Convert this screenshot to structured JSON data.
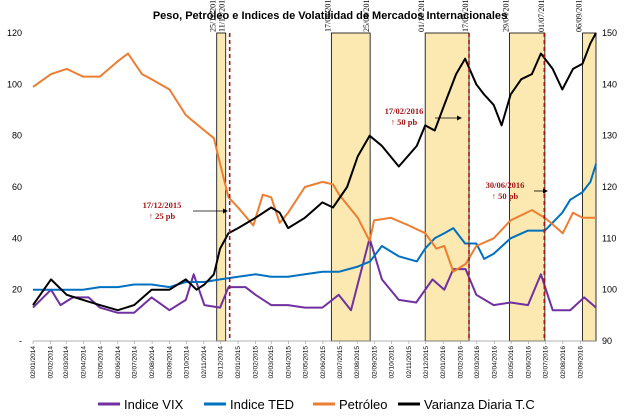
{
  "chart_data": {
    "type": "line",
    "title": "Peso, Petróleo e Indices de Volatilidad de Mercados Internacionales",
    "y_left": {
      "lim": [
        0,
        120
      ],
      "ticks": [
        0,
        20,
        40,
        60,
        80,
        100,
        120
      ],
      "tick_labels": [
        "-",
        "20",
        "40",
        "60",
        "80",
        "100",
        "120"
      ]
    },
    "y_right": {
      "lim": [
        90,
        150
      ],
      "ticks": [
        90,
        100,
        110,
        120,
        130,
        140,
        150
      ],
      "tick_labels": [
        "90",
        "100",
        "110",
        "120",
        "130",
        "140",
        "150"
      ]
    },
    "x_range": [
      "2014-01-02",
      "2016-09-30"
    ],
    "x_tick_labels": [
      "02/01/2014",
      "02/02/2014",
      "02/03/2014",
      "02/04/2014",
      "02/05/2014",
      "02/06/2014",
      "02/07/2014",
      "02/08/2014",
      "02/09/2014",
      "02/10/2014",
      "02/11/2014",
      "02/12/2014",
      "02/01/2015",
      "02/02/2015",
      "02/03/2015",
      "02/04/2015",
      "02/05/2015",
      "02/06/2015",
      "02/07/2015",
      "02/08/2015",
      "02/09/2015",
      "02/10/2015",
      "02/11/2015",
      "02/12/2015",
      "02/01/2016",
      "02/02/2016",
      "02/03/2016",
      "02/04/2016",
      "02/05/2016",
      "02/06/2016",
      "02/07/2016",
      "02/08/2016",
      "02/09/2016"
    ],
    "shaded_periods": [
      {
        "start": "2014-11-25",
        "end": "2014-12-11",
        "start_label": "25/11/2014",
        "end_label": "11/12/2014"
      },
      {
        "start": "2015-06-17",
        "end": "2015-08-25",
        "start_label": "17/06/2015",
        "end_label": "25/08/2015"
      },
      {
        "start": "2015-12-01",
        "end": "2016-02-17",
        "start_label": "01/12/2015",
        "end_label": "17/02/2016"
      },
      {
        "start": "2016-04-29",
        "end": "2016-07-01",
        "start_label": "29/04/2016",
        "end_label": "01/07/2016"
      },
      {
        "start": "2016-09-06",
        "end": "2016-09-30",
        "start_label": "06/09/2016",
        "end_label": ""
      }
    ],
    "event_lines": [
      "2014-12-18",
      "2016-02-17",
      "2016-06-30"
    ],
    "annotations": [
      {
        "date_text": "17/12/2015",
        "change_text": "↑ 25 pb"
      },
      {
        "date_text": "17/02/2016",
        "change_text": "↑ 50 pb"
      },
      {
        "date_text": "30/06/2016",
        "change_text": "↑ 50 pb"
      }
    ],
    "series": [
      {
        "name": "Indice VIX",
        "color": "#7030a0",
        "axis": "left",
        "points": [
          [
            "2014-01-02",
            13
          ],
          [
            "2014-02-03",
            20
          ],
          [
            "2014-02-20",
            14
          ],
          [
            "2014-03-14",
            17
          ],
          [
            "2014-04-11",
            17
          ],
          [
            "2014-05-01",
            13
          ],
          [
            "2014-06-02",
            11
          ],
          [
            "2014-07-01",
            11
          ],
          [
            "2014-08-01",
            17
          ],
          [
            "2014-09-02",
            12
          ],
          [
            "2014-10-01",
            16
          ],
          [
            "2014-10-15",
            26
          ],
          [
            "2014-11-03",
            14
          ],
          [
            "2014-12-01",
            13
          ],
          [
            "2014-12-16",
            21
          ],
          [
            "2015-01-15",
            21
          ],
          [
            "2015-02-02",
            18
          ],
          [
            "2015-03-02",
            14
          ],
          [
            "2015-04-01",
            14
          ],
          [
            "2015-05-01",
            13
          ],
          [
            "2015-06-01",
            13
          ],
          [
            "2015-06-30",
            18
          ],
          [
            "2015-07-22",
            12
          ],
          [
            "2015-08-24",
            40
          ],
          [
            "2015-09-15",
            24
          ],
          [
            "2015-10-15",
            16
          ],
          [
            "2015-11-15",
            15
          ],
          [
            "2015-12-14",
            24
          ],
          [
            "2016-01-04",
            20
          ],
          [
            "2016-01-20",
            28
          ],
          [
            "2016-02-11",
            28
          ],
          [
            "2016-03-01",
            18
          ],
          [
            "2016-04-01",
            14
          ],
          [
            "2016-05-01",
            15
          ],
          [
            "2016-06-01",
            14
          ],
          [
            "2016-06-24",
            26
          ],
          [
            "2016-07-15",
            12
          ],
          [
            "2016-08-15",
            12
          ],
          [
            "2016-09-09",
            17
          ],
          [
            "2016-09-30",
            13
          ]
        ]
      },
      {
        "name": "Indice TED",
        "color": "#0070c0",
        "axis": "left",
        "points": [
          [
            "2014-01-02",
            20
          ],
          [
            "2014-02-03",
            20
          ],
          [
            "2014-03-03",
            20
          ],
          [
            "2014-04-01",
            20
          ],
          [
            "2014-05-01",
            21
          ],
          [
            "2014-06-02",
            21
          ],
          [
            "2014-07-01",
            22
          ],
          [
            "2014-08-01",
            22
          ],
          [
            "2014-09-02",
            21
          ],
          [
            "2014-10-01",
            23
          ],
          [
            "2014-11-03",
            23
          ],
          [
            "2014-12-01",
            24
          ],
          [
            "2015-01-02",
            25
          ],
          [
            "2015-02-02",
            26
          ],
          [
            "2015-03-02",
            25
          ],
          [
            "2015-04-01",
            25
          ],
          [
            "2015-05-01",
            26
          ],
          [
            "2015-06-01",
            27
          ],
          [
            "2015-07-01",
            27
          ],
          [
            "2015-08-03",
            29
          ],
          [
            "2015-08-25",
            31
          ],
          [
            "2015-09-15",
            37
          ],
          [
            "2015-10-15",
            33
          ],
          [
            "2015-11-16",
            31
          ],
          [
            "2015-12-01",
            36
          ],
          [
            "2015-12-18",
            40
          ],
          [
            "2016-01-04",
            42
          ],
          [
            "2016-01-20",
            44
          ],
          [
            "2016-02-10",
            38
          ],
          [
            "2016-03-01",
            38
          ],
          [
            "2016-03-15",
            32
          ],
          [
            "2016-04-01",
            34
          ],
          [
            "2016-05-01",
            40
          ],
          [
            "2016-06-01",
            43
          ],
          [
            "2016-07-01",
            43
          ],
          [
            "2016-08-01",
            50
          ],
          [
            "2016-08-15",
            55
          ],
          [
            "2016-09-06",
            58
          ],
          [
            "2016-09-20",
            62
          ],
          [
            "2016-09-30",
            69
          ]
        ]
      },
      {
        "name": "Petróleo",
        "color": "#ed7d31",
        "axis": "left",
        "points": [
          [
            "2014-01-02",
            99
          ],
          [
            "2014-02-03",
            104
          ],
          [
            "2014-03-03",
            106
          ],
          [
            "2014-04-01",
            103
          ],
          [
            "2014-05-01",
            103
          ],
          [
            "2014-06-02",
            109
          ],
          [
            "2014-06-20",
            112
          ],
          [
            "2014-07-15",
            104
          ],
          [
            "2014-08-01",
            102
          ],
          [
            "2014-09-02",
            98
          ],
          [
            "2014-10-01",
            88
          ],
          [
            "2014-11-03",
            82
          ],
          [
            "2014-11-20",
            79
          ],
          [
            "2014-12-01",
            69
          ],
          [
            "2014-12-16",
            56
          ],
          [
            "2015-01-02",
            52
          ],
          [
            "2015-01-29",
            45
          ],
          [
            "2015-02-15",
            57
          ],
          [
            "2015-03-02",
            56
          ],
          [
            "2015-03-17",
            46
          ],
          [
            "2015-04-01",
            50
          ],
          [
            "2015-05-01",
            60
          ],
          [
            "2015-06-01",
            62
          ],
          [
            "2015-06-20",
            61
          ],
          [
            "2015-07-01",
            57
          ],
          [
            "2015-08-03",
            48
          ],
          [
            "2015-08-24",
            39
          ],
          [
            "2015-09-01",
            47
          ],
          [
            "2015-10-01",
            48
          ],
          [
            "2015-11-02",
            45
          ],
          [
            "2015-12-01",
            42
          ],
          [
            "2015-12-21",
            36
          ],
          [
            "2016-01-04",
            37
          ],
          [
            "2016-01-20",
            27
          ],
          [
            "2016-02-11",
            30
          ],
          [
            "2016-03-01",
            37
          ],
          [
            "2016-04-01",
            40
          ],
          [
            "2016-05-01",
            47
          ],
          [
            "2016-06-08",
            51
          ],
          [
            "2016-07-01",
            48
          ],
          [
            "2016-08-02",
            42
          ],
          [
            "2016-08-20",
            50
          ],
          [
            "2016-09-06",
            48
          ],
          [
            "2016-09-30",
            48
          ]
        ]
      },
      {
        "name": "Varianza Diaria T.C",
        "color": "#000000",
        "axis": "right",
        "points": [
          [
            "2014-01-02",
            97
          ],
          [
            "2014-02-03",
            102
          ],
          [
            "2014-03-03",
            99
          ],
          [
            "2014-04-01",
            98
          ],
          [
            "2014-05-01",
            97
          ],
          [
            "2014-06-02",
            96
          ],
          [
            "2014-07-01",
            97
          ],
          [
            "2014-08-01",
            100
          ],
          [
            "2014-09-02",
            100
          ],
          [
            "2014-10-01",
            102
          ],
          [
            "2014-10-20",
            100
          ],
          [
            "2014-11-03",
            101
          ],
          [
            "2014-11-20",
            103
          ],
          [
            "2014-12-01",
            108
          ],
          [
            "2014-12-16",
            111
          ],
          [
            "2015-01-02",
            112
          ],
          [
            "2015-02-02",
            114
          ],
          [
            "2015-03-02",
            116
          ],
          [
            "2015-03-17",
            115
          ],
          [
            "2015-04-01",
            112
          ],
          [
            "2015-05-01",
            114
          ],
          [
            "2015-06-01",
            117
          ],
          [
            "2015-06-20",
            116
          ],
          [
            "2015-07-15",
            120
          ],
          [
            "2015-08-03",
            126
          ],
          [
            "2015-08-24",
            130
          ],
          [
            "2015-09-15",
            128
          ],
          [
            "2015-10-15",
            124
          ],
          [
            "2015-11-16",
            128
          ],
          [
            "2015-12-01",
            132
          ],
          [
            "2015-12-18",
            131
          ],
          [
            "2016-01-04",
            136
          ],
          [
            "2016-01-25",
            142
          ],
          [
            "2016-02-10",
            145
          ],
          [
            "2016-03-01",
            140
          ],
          [
            "2016-03-15",
            138
          ],
          [
            "2016-04-01",
            136
          ],
          [
            "2016-04-15",
            132
          ],
          [
            "2016-05-01",
            138
          ],
          [
            "2016-05-20",
            141
          ],
          [
            "2016-06-08",
            142
          ],
          [
            "2016-06-24",
            146
          ],
          [
            "2016-07-15",
            143
          ],
          [
            "2016-08-01",
            139
          ],
          [
            "2016-08-20",
            143
          ],
          [
            "2016-09-06",
            144
          ],
          [
            "2016-09-20",
            148
          ],
          [
            "2016-09-30",
            150
          ]
        ]
      }
    ]
  }
}
